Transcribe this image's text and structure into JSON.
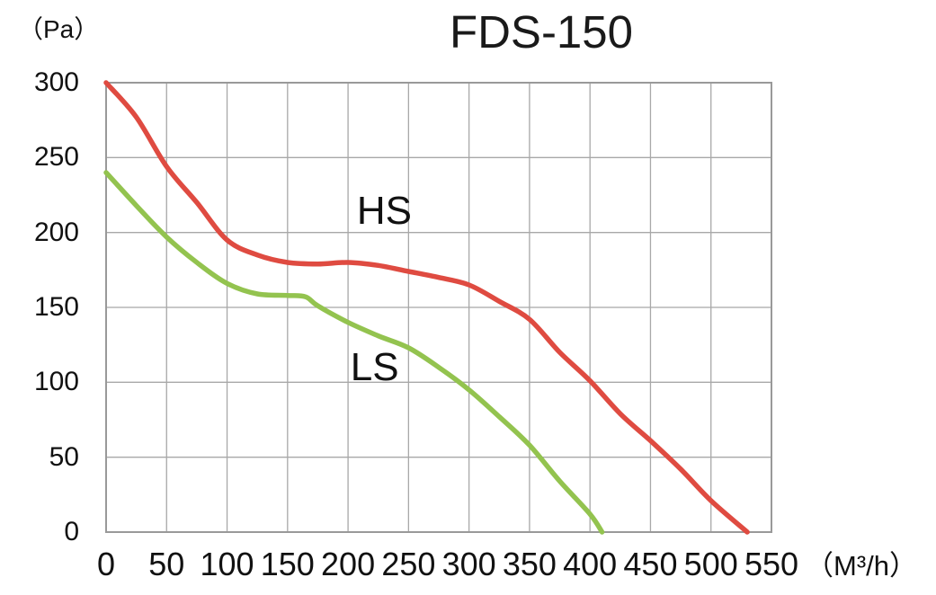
{
  "chart_data": {
    "type": "line",
    "title": "FDS-150",
    "y_unit_label": "（Pa）",
    "x_unit_label": "（M³/h）",
    "xlim": [
      0,
      550
    ],
    "ylim": [
      0,
      300
    ],
    "x_ticks": [
      0,
      50,
      100,
      150,
      200,
      250,
      300,
      350,
      400,
      450,
      500,
      550
    ],
    "y_ticks": [
      0,
      50,
      100,
      150,
      200,
      250,
      300
    ],
    "grid": true,
    "grid_color": "#a8a8a8",
    "border_color": "#999999",
    "legend_position": "labels-on-curves",
    "series": [
      {
        "name": "HS",
        "color": "#df4b41",
        "label_pos": {
          "x": 230,
          "y": 214
        },
        "points": [
          [
            0,
            300
          ],
          [
            25,
            277
          ],
          [
            50,
            244
          ],
          [
            75,
            220
          ],
          [
            100,
            195
          ],
          [
            125,
            185
          ],
          [
            150,
            180
          ],
          [
            175,
            179
          ],
          [
            200,
            180
          ],
          [
            225,
            178
          ],
          [
            250,
            174
          ],
          [
            275,
            170
          ],
          [
            300,
            165
          ],
          [
            325,
            154
          ],
          [
            350,
            142
          ],
          [
            375,
            120
          ],
          [
            400,
            101
          ],
          [
            425,
            79
          ],
          [
            450,
            61
          ],
          [
            475,
            42
          ],
          [
            500,
            21
          ],
          [
            530,
            0
          ]
        ]
      },
      {
        "name": "LS",
        "color": "#93c34f",
        "label_pos": {
          "x": 222,
          "y": 110
        },
        "points": [
          [
            0,
            240
          ],
          [
            25,
            218
          ],
          [
            50,
            197
          ],
          [
            75,
            180
          ],
          [
            100,
            166
          ],
          [
            125,
            159
          ],
          [
            150,
            158
          ],
          [
            165,
            157
          ],
          [
            175,
            151
          ],
          [
            200,
            140
          ],
          [
            225,
            131
          ],
          [
            250,
            123
          ],
          [
            275,
            110
          ],
          [
            300,
            95
          ],
          [
            325,
            77
          ],
          [
            350,
            58
          ],
          [
            375,
            34
          ],
          [
            400,
            12
          ],
          [
            410,
            0
          ]
        ]
      }
    ]
  }
}
